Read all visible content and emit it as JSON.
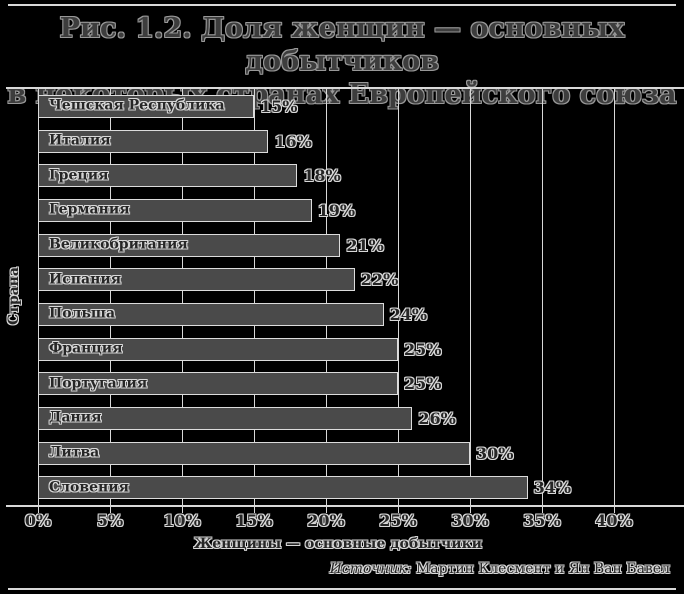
{
  "figure": {
    "title_line1": "Рис. 1.2. Доля женщин — основных добытчиков",
    "title_line2": "в некоторых странах Европейского союза",
    "source_prefix": "Источник:",
    "source_text": "Мартин Клесмент и Ян Ван Бавел"
  },
  "chart_data": {
    "type": "bar",
    "orientation": "horizontal",
    "title": "Рис. 1.2. Доля женщин — основных добытчиков в некоторых странах Европейского союза",
    "categories": [
      "Чешская Республика",
      "Италия",
      "Греция",
      "Германия",
      "Великобритания",
      "Испания",
      "Польша",
      "Франция",
      "Португалия",
      "Дания",
      "Литва",
      "Словения"
    ],
    "values": [
      15,
      16,
      18,
      19,
      21,
      22,
      24,
      25,
      25,
      26,
      30,
      34
    ],
    "value_labels": [
      "15%",
      "16%",
      "18%",
      "19%",
      "21%",
      "22%",
      "24%",
      "25%",
      "25%",
      "26%",
      "30%",
      "34%"
    ],
    "xlabel": "Женщины — основные добытчики",
    "ylabel": "Страна",
    "xlim": [
      0,
      45
    ],
    "x_tick_values": [
      0,
      5,
      10,
      15,
      20,
      25,
      30,
      35,
      40
    ],
    "x_tick_labels": [
      "0%",
      "5%",
      "10%",
      "15%",
      "20%",
      "25%",
      "30%",
      "35%",
      "40%"
    ],
    "grid": "vertical",
    "legend": "none",
    "source": "Источник: Мартин Клесмент и Ян Ван Бавел",
    "colors": {
      "background": "#000000",
      "bar_fill": "#4a4a4a",
      "bar_border": "#dcdcdc",
      "grid_line": "#d8d8d8",
      "text_light": "#d8d8d8",
      "title_fill": "#3d3d3d",
      "title_outline": "#989898"
    }
  }
}
